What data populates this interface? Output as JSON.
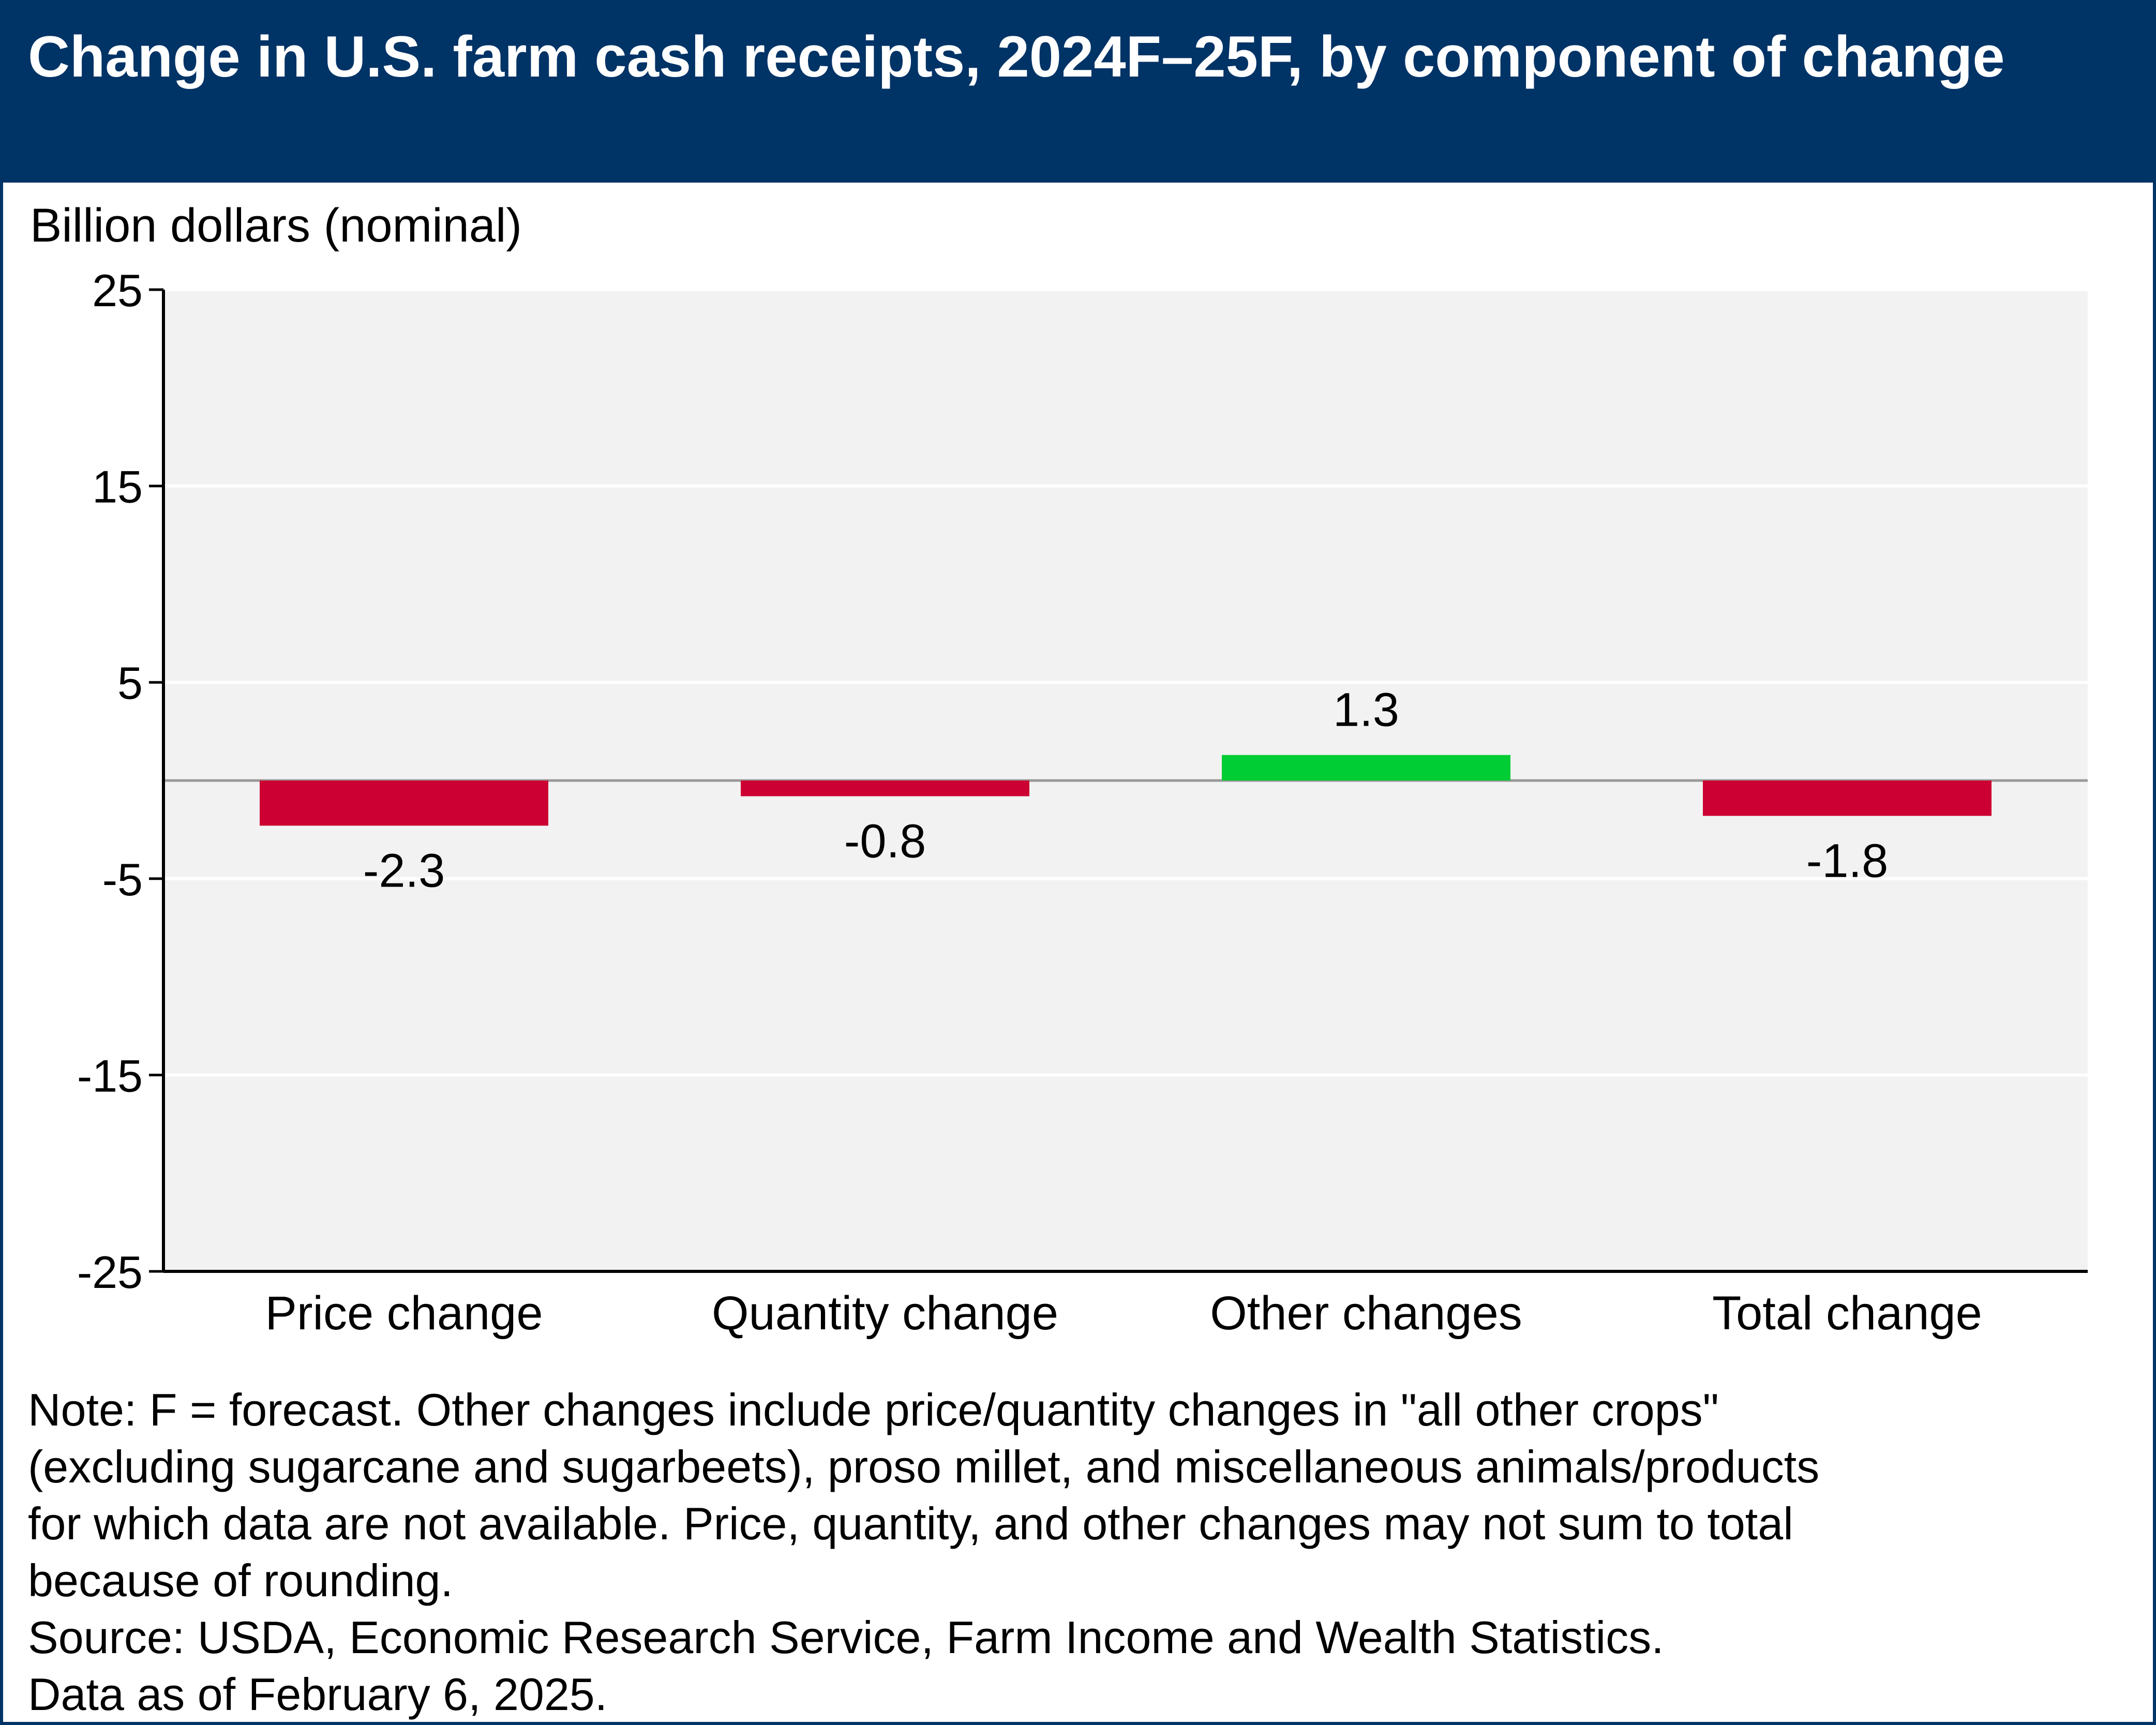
{
  "title": "Change in U.S. farm cash receipts, 2024F–25F, by component of change",
  "colors": {
    "header_bg": "#003366",
    "plot_bg": "#f2f2f2",
    "negative_bar": "#cc0033",
    "positive_bar": "#00cc33",
    "zero_line": "#999999"
  },
  "chart_data": {
    "type": "bar",
    "title": "Change in U.S. farm cash receipts, 2024F–25F, by component of change",
    "ylabel": "Billion dollars (nominal)",
    "xlabel": "",
    "categories": [
      "Price change",
      "Quantity change",
      "Other changes",
      "Total change"
    ],
    "values": [
      -2.3,
      -0.8,
      1.3,
      -1.8
    ],
    "data_labels": [
      "-2.3",
      "-0.8",
      "1.3",
      "-1.8"
    ],
    "ylim": [
      -25,
      25
    ],
    "yticks": [
      25,
      15,
      5,
      -5,
      -15,
      -25
    ],
    "ytick_labels": [
      "25",
      "15",
      "5",
      "-5",
      "-15",
      "-25"
    ],
    "grid": true,
    "legend": "none"
  },
  "notes": [
    "Note: F = forecast. Other changes include price/quantity changes in \"all other crops\"",
    "(excluding sugarcane and sugarbeets), proso millet, and miscellaneous animals/products",
    "for which data are not available. Price, quantity, and other changes may not sum to total",
    "because of rounding."
  ],
  "source": "Source: USDA, Economic Research Service, Farm Income and Wealth Statistics.",
  "data_date": "Data as of February 6, 2025."
}
